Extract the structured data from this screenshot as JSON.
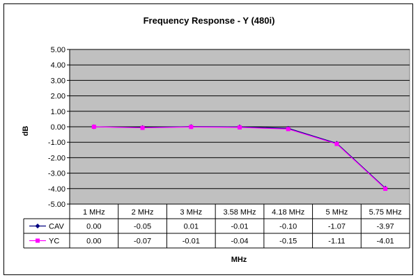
{
  "chart_data": {
    "type": "line",
    "title": "Frequency Response - Y (480i)",
    "xlabel": "MHz",
    "ylabel": "dB",
    "ylim": [
      -5,
      5
    ],
    "ytick_step": 1,
    "ytick_labels": [
      "5.00",
      "4.00",
      "3.00",
      "2.00",
      "1.00",
      "0.00",
      "-1.00",
      "-2.00",
      "-3.00",
      "-4.00",
      "-5.00"
    ],
    "categories": [
      "1 MHz",
      "2 MHz",
      "3 MHz",
      "3.58 MHz",
      "4.18 MHz",
      "5 MHz",
      "5.75 MHz"
    ],
    "grid": true,
    "plot_background": "#c0c0c0",
    "data_table": true,
    "series": [
      {
        "name": "CAV",
        "color": "#000080",
        "marker": "diamond",
        "values": [
          0.0,
          -0.05,
          0.01,
          -0.01,
          -0.1,
          -1.07,
          -3.97
        ],
        "labels": [
          "0.00",
          "-0.05",
          "0.01",
          "-0.01",
          "-0.10",
          "-1.07",
          "-3.97"
        ]
      },
      {
        "name": "YC",
        "color": "#ff00ff",
        "marker": "square",
        "values": [
          0.0,
          -0.07,
          -0.01,
          -0.04,
          -0.15,
          -1.11,
          -4.01
        ],
        "labels": [
          "0.00",
          "-0.07",
          "-0.01",
          "-0.04",
          "-0.15",
          "-1.11",
          "-4.01"
        ]
      }
    ]
  }
}
